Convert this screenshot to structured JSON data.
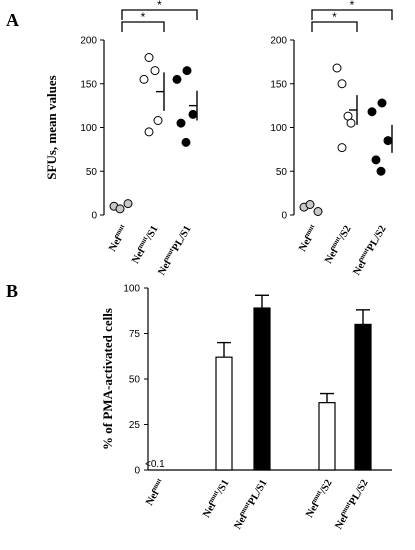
{
  "panel_letters": {
    "a": "A",
    "b": "B"
  },
  "colors": {
    "gray_point": "#c8c8c8",
    "open_point": "#ffffff",
    "filled_point": "#000000",
    "open_bar": "#ffffff",
    "filled_bar": "#000000"
  },
  "chart_data": [
    {
      "panel": "A",
      "type": "scatter",
      "title": "",
      "xlabel": "",
      "ylabel": "SFUs, mean values",
      "ylim": [
        0,
        200
      ],
      "yticks": [
        0,
        50,
        100,
        150,
        200
      ],
      "grid": false,
      "subplots": [
        {
          "categories": [
            {
              "base": "Nef",
              "sup": "mut",
              "suffix": ""
            },
            {
              "base": "Nef",
              "sup": "mut",
              "suffix": "/S1"
            },
            {
              "base": "Nef",
              "sup": "mut",
              "suffix": "PL/S1"
            }
          ],
          "groups": [
            {
              "category": 0,
              "fill": "gray",
              "points": [
                10,
                7,
                13
              ],
              "mean": 10,
              "sd": 2
            },
            {
              "category": 1,
              "fill": "open",
              "points": [
                180,
                155,
                165,
                108,
                95
              ],
              "mean": 141,
              "sd": 22
            },
            {
              "category": 2,
              "fill": "filled",
              "points": [
                155,
                165,
                115,
                105,
                83
              ],
              "mean": 125,
              "sd": 17
            }
          ],
          "significance": [
            {
              "from": 0,
              "to": 1,
              "label": "*"
            },
            {
              "from": 0,
              "to": 2,
              "label": "*"
            }
          ]
        },
        {
          "categories": [
            {
              "base": "Nef",
              "sup": "mut",
              "suffix": ""
            },
            {
              "base": "Nef",
              "sup": "mut",
              "suffix": "/S2"
            },
            {
              "base": "Nef",
              "sup": "mut",
              "suffix": "PL/S2"
            }
          ],
          "groups": [
            {
              "category": 0,
              "fill": "gray",
              "points": [
                9,
                12,
                4
              ],
              "mean": 8,
              "sd": 2
            },
            {
              "category": 1,
              "fill": "open",
              "points": [
                150,
                168,
                113,
                105,
                77
              ],
              "mean": 120,
              "sd": 17
            },
            {
              "category": 2,
              "fill": "filled",
              "points": [
                118,
                128,
                85,
                63,
                50
              ],
              "mean": 87,
              "sd": 16
            }
          ],
          "significance": [
            {
              "from": 0,
              "to": 1,
              "label": "*"
            },
            {
              "from": 0,
              "to": 2,
              "label": "*"
            }
          ]
        }
      ]
    },
    {
      "panel": "B",
      "type": "bar",
      "title": "",
      "xlabel": "",
      "ylabel": "% of PMA-activated cells",
      "ylim": [
        0,
        100
      ],
      "yticks": [
        0,
        25,
        50,
        75,
        100
      ],
      "grid": false,
      "categories": [
        {
          "base": "Nef",
          "sup": "mut",
          "suffix": ""
        },
        {
          "base": "Nef",
          "sup": "mut",
          "suffix": "/S1"
        },
        {
          "base": "Nef",
          "sup": "mut",
          "suffix": "PL/S1"
        },
        {
          "base": "Nef",
          "sup": "mut",
          "suffix": "/S2"
        },
        {
          "base": "Nef",
          "sup": "mut",
          "suffix": "PL/S2"
        }
      ],
      "bars": [
        {
          "category": 0,
          "value": 0,
          "error": 0,
          "fill": "none"
        },
        {
          "category": 1,
          "value": 62,
          "error": 8,
          "fill": "open"
        },
        {
          "category": 2,
          "value": 89,
          "error": 7,
          "fill": "filled"
        },
        {
          "category": 3,
          "value": 37,
          "error": 5,
          "fill": "open"
        },
        {
          "category": 4,
          "value": 80,
          "error": 8,
          "fill": "filled"
        }
      ],
      "annotations": [
        "<0.1"
      ]
    }
  ]
}
